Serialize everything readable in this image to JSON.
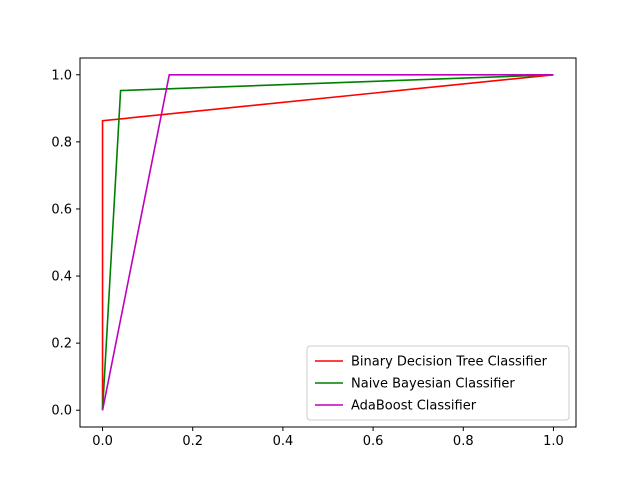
{
  "chart_data": {
    "type": "line",
    "title": "",
    "xlabel": "",
    "ylabel": "",
    "xlim": [
      -0.05,
      1.05
    ],
    "ylim": [
      -0.05,
      1.05
    ],
    "x_ticks": [
      0.0,
      0.2,
      0.4,
      0.6,
      0.8,
      1.0
    ],
    "x_tick_labels": [
      "0.0",
      "0.2",
      "0.4",
      "0.6",
      "0.8",
      "1.0"
    ],
    "y_ticks": [
      0.0,
      0.2,
      0.4,
      0.6,
      0.8,
      1.0
    ],
    "y_tick_labels": [
      "0.0",
      "0.2",
      "0.4",
      "0.6",
      "0.8",
      "1.0"
    ],
    "grid": false,
    "legend_position": "bottom-right",
    "series": [
      {
        "name": "Binary Decision Tree Classifier",
        "color": "#ff0000",
        "x": [
          0.0,
          0.0,
          1.0
        ],
        "y": [
          0.0,
          0.863,
          1.0
        ]
      },
      {
        "name": "Naive Bayesian Classifier",
        "color": "#008000",
        "x": [
          0.0,
          0.04,
          1.0
        ],
        "y": [
          0.0,
          0.953,
          1.0
        ]
      },
      {
        "name": "AdaBoost Classifier",
        "color": "#bf00bf",
        "x": [
          0.0,
          0.148,
          1.0
        ],
        "y": [
          0.0,
          1.0,
          1.0
        ]
      }
    ]
  }
}
